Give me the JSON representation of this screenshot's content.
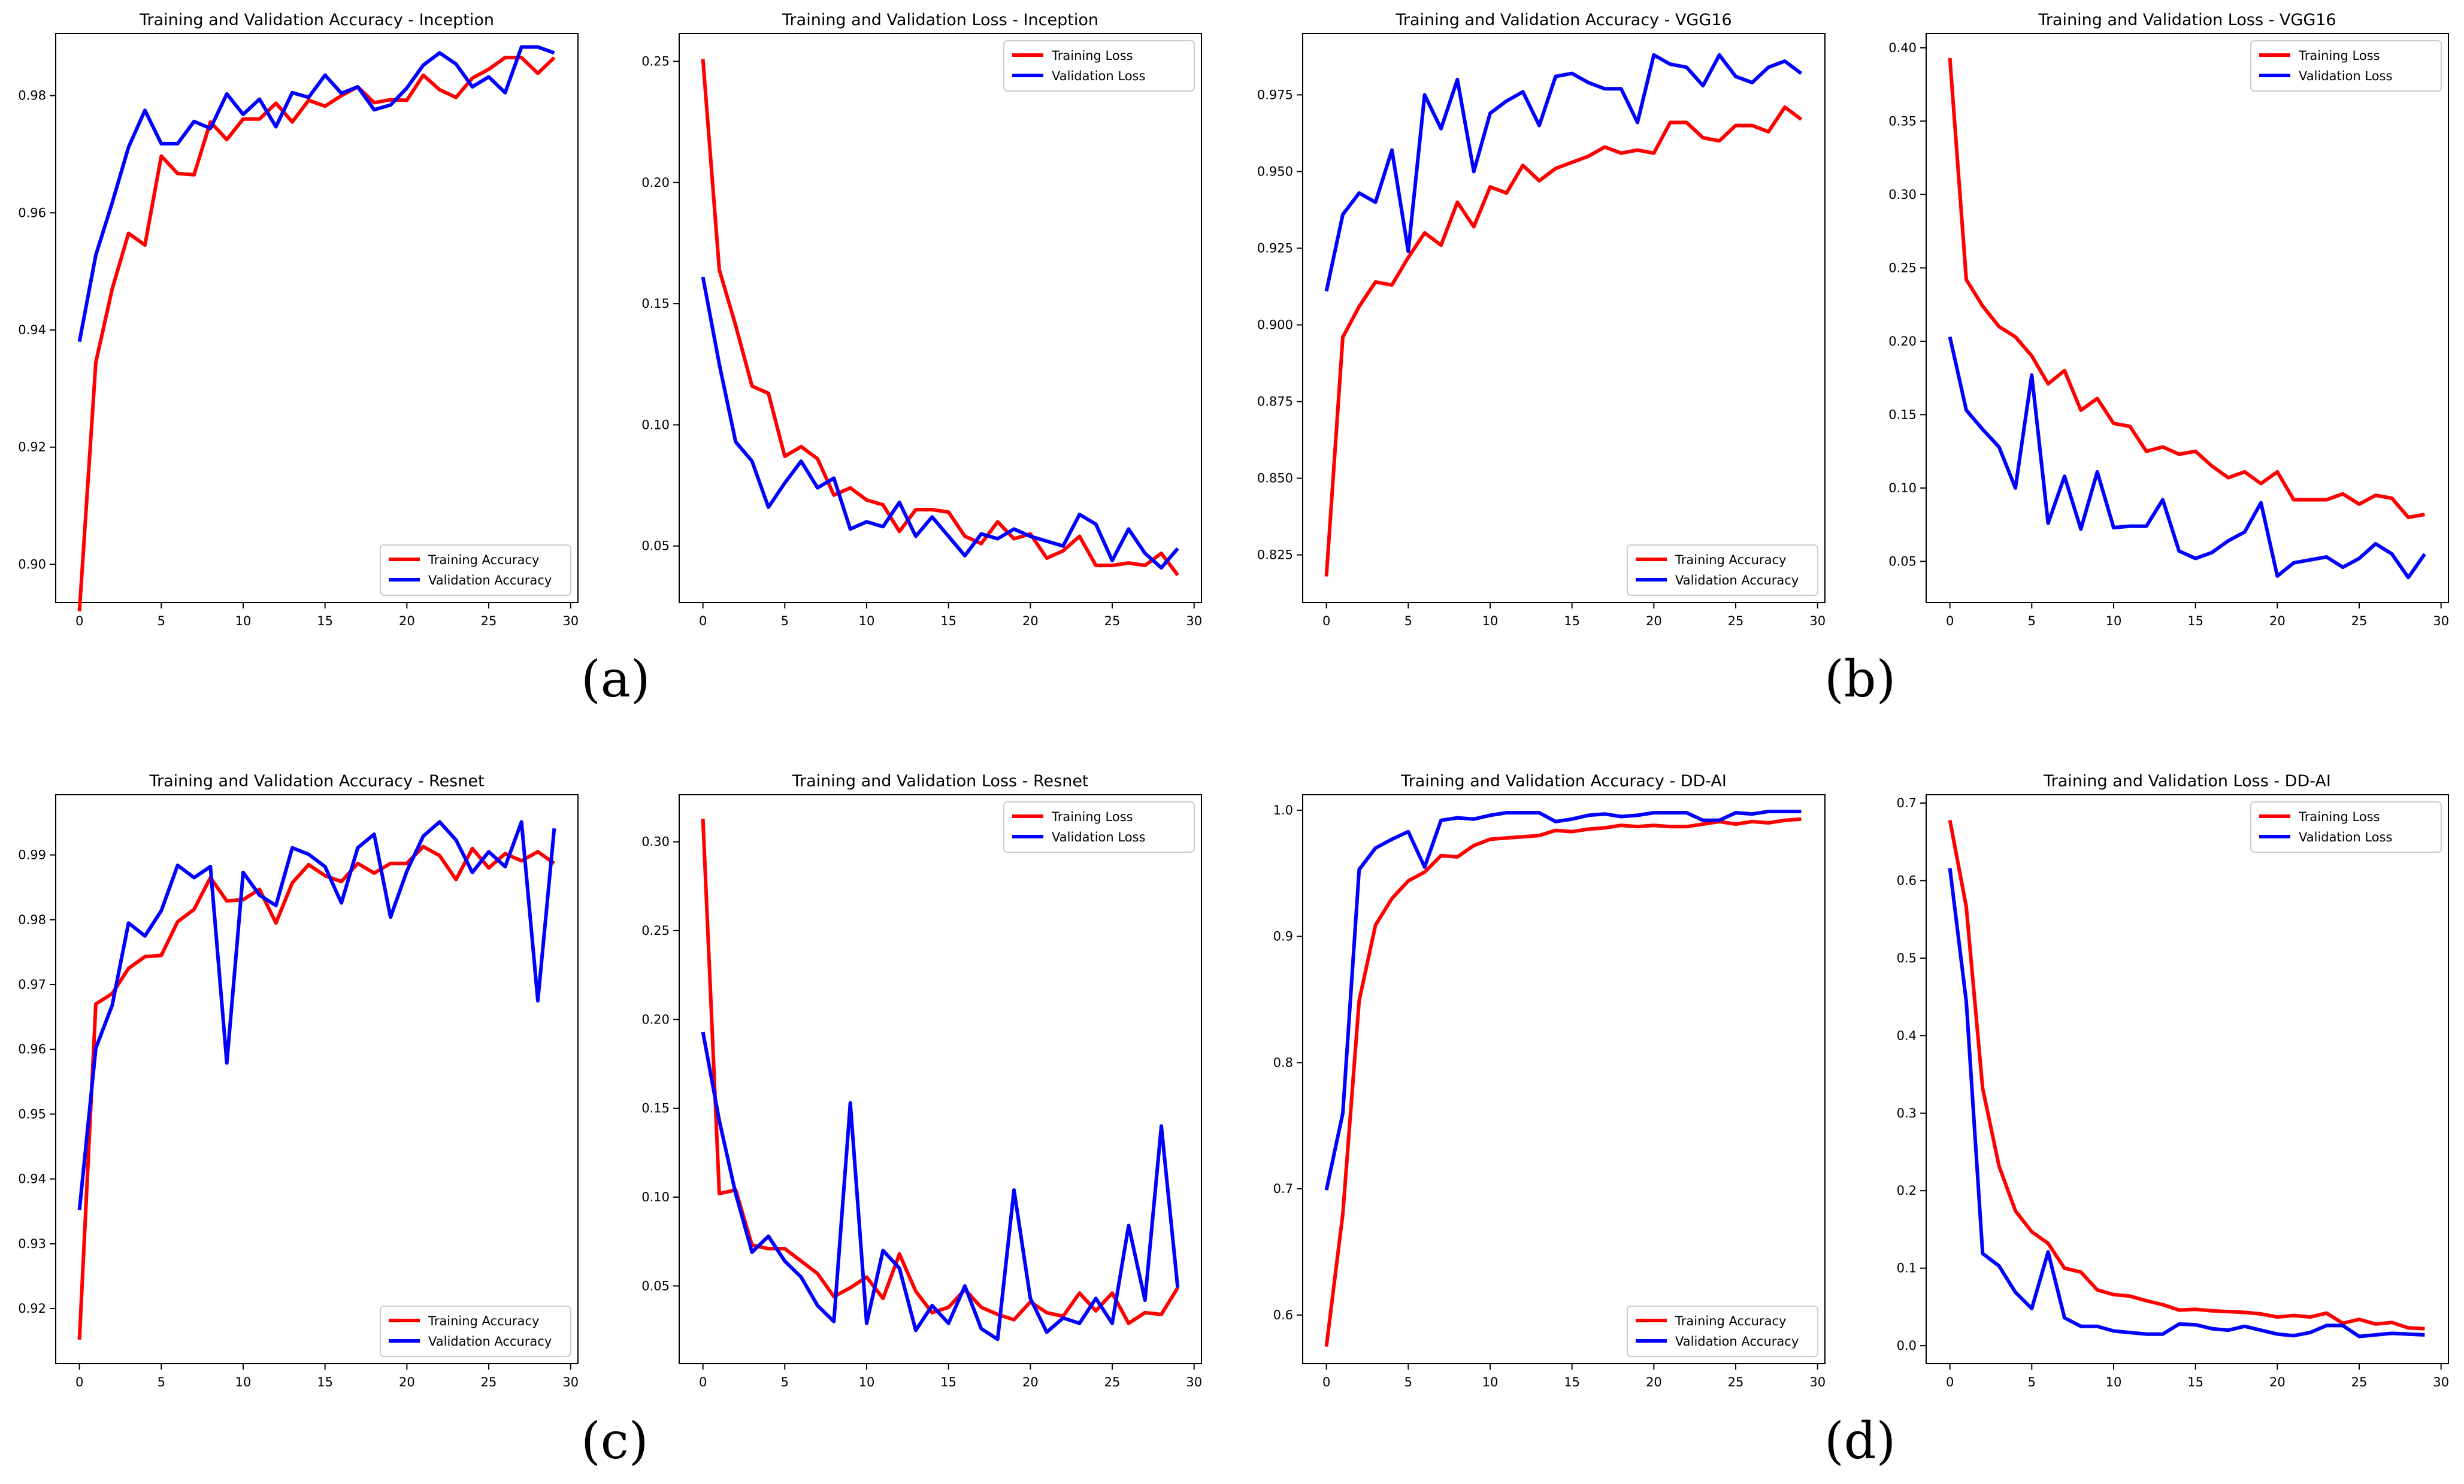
{
  "figure": {
    "panel_labels": [
      "(a)",
      "(b)",
      "(c)",
      "(d)"
    ]
  },
  "colors": {
    "training": "#ff0000",
    "validation": "#0000ff",
    "axes": "#000000",
    "legend_border": "#cccccc"
  },
  "chart_data": [
    {
      "id": "inception-acc",
      "type": "line",
      "title": "Training and Validation Accuracy - Inception",
      "xlabel": "",
      "ylabel": "",
      "xlim": [
        -1.45,
        30.45
      ],
      "ylim": [
        0.8935,
        0.9906
      ],
      "xticks": [
        0,
        5,
        10,
        15,
        20,
        25,
        30
      ],
      "yticks": [
        0.9,
        0.92,
        0.94,
        0.96,
        0.98
      ],
      "ytick_labels": [
        "0.90",
        "0.92",
        "0.94",
        "0.96",
        "0.98"
      ],
      "legend": "lower-right",
      "grid": false,
      "series": [
        {
          "name": "Training Accuracy",
          "color": "#ff0000",
          "values": [
            0.892,
            0.9345,
            0.947,
            0.9565,
            0.9545,
            0.9697,
            0.9667,
            0.9665,
            0.9755,
            0.9725,
            0.976,
            0.976,
            0.9787,
            0.9755,
            0.9792,
            0.9782,
            0.98,
            0.9815,
            0.9788,
            0.9793,
            0.9792,
            0.9835,
            0.981,
            0.9797,
            0.983,
            0.9845,
            0.9865,
            0.9865,
            0.9838,
            0.9865
          ]
        },
        {
          "name": "Validation Accuracy",
          "color": "#0000ff",
          "values": [
            0.938,
            0.9528,
            0.9617,
            0.9712,
            0.9775,
            0.9718,
            0.9718,
            0.9756,
            0.9744,
            0.9803,
            0.9768,
            0.9794,
            0.9747,
            0.9805,
            0.9797,
            0.9835,
            0.9804,
            0.9815,
            0.9776,
            0.9784,
            0.9813,
            0.9852,
            0.9873,
            0.9854,
            0.9815,
            0.9832,
            0.9805,
            0.9883,
            0.9883,
            0.9873
          ]
        }
      ]
    },
    {
      "id": "inception-loss",
      "type": "line",
      "title": "Training and Validation Loss - Inception",
      "xlabel": "",
      "ylabel": "",
      "xlim": [
        -1.45,
        30.45
      ],
      "ylim": [
        0.0267,
        0.2615
      ],
      "xticks": [
        0,
        5,
        10,
        15,
        20,
        25,
        30
      ],
      "yticks": [
        0.05,
        0.1,
        0.15,
        0.2,
        0.25
      ],
      "ytick_labels": [
        "0.05",
        "0.10",
        "0.15",
        "0.20",
        "0.25"
      ],
      "legend": "upper-right",
      "grid": false,
      "series": [
        {
          "name": "Training Loss",
          "color": "#ff0000",
          "values": [
            0.251,
            0.164,
            0.141,
            0.116,
            0.113,
            0.087,
            0.091,
            0.086,
            0.071,
            0.074,
            0.069,
            0.067,
            0.056,
            0.065,
            0.065,
            0.064,
            0.054,
            0.051,
            0.06,
            0.053,
            0.055,
            0.045,
            0.048,
            0.054,
            0.042,
            0.042,
            0.043,
            0.042,
            0.047,
            0.038
          ]
        },
        {
          "name": "Validation Loss",
          "color": "#0000ff",
          "values": [
            0.161,
            0.125,
            0.093,
            0.085,
            0.066,
            0.076,
            0.085,
            0.074,
            0.078,
            0.057,
            0.06,
            0.058,
            0.068,
            0.054,
            0.062,
            0.054,
            0.046,
            0.055,
            0.053,
            0.057,
            0.054,
            0.052,
            0.05,
            0.063,
            0.059,
            0.044,
            0.057,
            0.047,
            0.041,
            0.049
          ]
        }
      ]
    },
    {
      "id": "vgg16-acc",
      "type": "line",
      "title": "Training and Validation Accuracy - VGG16",
      "xlabel": "",
      "ylabel": "",
      "xlim": [
        -1.45,
        30.45
      ],
      "ylim": [
        0.8095,
        0.995
      ],
      "xticks": [
        0,
        5,
        10,
        15,
        20,
        25,
        30
      ],
      "yticks": [
        0.825,
        0.85,
        0.875,
        0.9,
        0.925,
        0.95,
        0.975
      ],
      "ytick_labels": [
        "0.825",
        "0.850",
        "0.875",
        "0.900",
        "0.925",
        "0.950",
        "0.975"
      ],
      "legend": "lower-right",
      "grid": false,
      "series": [
        {
          "name": "Training Accuracy",
          "color": "#ff0000",
          "values": [
            0.818,
            0.896,
            0.906,
            0.914,
            0.913,
            0.922,
            0.93,
            0.926,
            0.94,
            0.932,
            0.945,
            0.943,
            0.952,
            0.947,
            0.951,
            0.953,
            0.955,
            0.958,
            0.956,
            0.957,
            0.956,
            0.966,
            0.966,
            0.961,
            0.96,
            0.965,
            0.965,
            0.963,
            0.971,
            0.967
          ]
        },
        {
          "name": "Validation Accuracy",
          "color": "#0000ff",
          "values": [
            0.911,
            0.936,
            0.943,
            0.94,
            0.957,
            0.924,
            0.975,
            0.964,
            0.98,
            0.95,
            0.969,
            0.973,
            0.976,
            0.965,
            0.981,
            0.982,
            0.979,
            0.977,
            0.977,
            0.966,
            0.988,
            0.985,
            0.984,
            0.978,
            0.988,
            0.981,
            0.979,
            0.984,
            0.986,
            0.982
          ]
        }
      ]
    },
    {
      "id": "vgg16-loss",
      "type": "line",
      "title": "Training and Validation Loss - VGG16",
      "xlabel": "",
      "ylabel": "",
      "xlim": [
        -1.45,
        30.45
      ],
      "ylim": [
        0.022,
        0.4097
      ],
      "xticks": [
        0,
        5,
        10,
        15,
        20,
        25,
        30
      ],
      "yticks": [
        0.05,
        0.1,
        0.15,
        0.2,
        0.25,
        0.3,
        0.35,
        0.4
      ],
      "ytick_labels": [
        "0.05",
        "0.10",
        "0.15",
        "0.20",
        "0.25",
        "0.30",
        "0.35",
        "0.40"
      ],
      "legend": "upper-right",
      "grid": false,
      "series": [
        {
          "name": "Training Loss",
          "color": "#ff0000",
          "values": [
            0.393,
            0.242,
            0.224,
            0.21,
            0.203,
            0.19,
            0.171,
            0.18,
            0.153,
            0.161,
            0.144,
            0.142,
            0.125,
            0.128,
            0.123,
            0.125,
            0.115,
            0.107,
            0.111,
            0.103,
            0.111,
            0.092,
            0.092,
            0.092,
            0.096,
            0.089,
            0.095,
            0.093,
            0.08,
            0.082
          ]
        },
        {
          "name": "Validation Loss",
          "color": "#0000ff",
          "values": [
            0.203,
            0.153,
            0.14,
            0.128,
            0.1,
            0.177,
            0.076,
            0.108,
            0.072,
            0.111,
            0.073,
            0.074,
            0.074,
            0.092,
            0.057,
            0.052,
            0.056,
            0.064,
            0.07,
            0.09,
            0.04,
            0.049,
            0.051,
            0.053,
            0.046,
            0.052,
            0.062,
            0.055,
            0.039,
            0.055
          ]
        }
      ]
    },
    {
      "id": "resnet-acc",
      "type": "line",
      "title": "Training and Validation Accuracy - Resnet",
      "xlabel": "",
      "ylabel": "",
      "xlim": [
        -1.45,
        30.45
      ],
      "ylim": [
        0.9115,
        0.9993
      ],
      "xticks": [
        0,
        5,
        10,
        15,
        20,
        25,
        30
      ],
      "yticks": [
        0.92,
        0.93,
        0.94,
        0.95,
        0.96,
        0.97,
        0.98,
        0.99
      ],
      "ytick_labels": [
        "0.92",
        "0.93",
        "0.94",
        "0.95",
        "0.96",
        "0.97",
        "0.98",
        "0.99"
      ],
      "legend": "lower-right",
      "grid": false,
      "series": [
        {
          "name": "Training Accuracy",
          "color": "#ff0000",
          "values": [
            0.9152,
            0.967,
            0.9686,
            0.9725,
            0.9743,
            0.9745,
            0.9797,
            0.9816,
            0.9865,
            0.9829,
            0.9831,
            0.9847,
            0.9795,
            0.9857,
            0.9885,
            0.9868,
            0.9859,
            0.9887,
            0.9872,
            0.9887,
            0.9887,
            0.9913,
            0.9899,
            0.9862,
            0.991,
            0.988,
            0.9902,
            0.9891,
            0.9905,
            0.9887
          ]
        },
        {
          "name": "Validation Accuracy",
          "color": "#0000ff",
          "values": [
            0.9352,
            0.9602,
            0.9668,
            0.9795,
            0.9775,
            0.9814,
            0.9884,
            0.9865,
            0.9882,
            0.9579,
            0.9873,
            0.9838,
            0.9822,
            0.9911,
            0.9901,
            0.9882,
            0.9826,
            0.9911,
            0.9932,
            0.9804,
            0.9875,
            0.9929,
            0.9951,
            0.9923,
            0.9873,
            0.9905,
            0.9882,
            0.9951,
            0.9675,
            0.9941
          ]
        }
      ]
    },
    {
      "id": "resnet-loss",
      "type": "line",
      "title": "Training and Validation Loss - Resnet",
      "xlabel": "",
      "ylabel": "",
      "xlim": [
        -1.45,
        30.45
      ],
      "ylim": [
        0.0063,
        0.3265
      ],
      "xticks": [
        0,
        5,
        10,
        15,
        20,
        25,
        30
      ],
      "yticks": [
        0.05,
        0.1,
        0.15,
        0.2,
        0.25,
        0.3
      ],
      "ytick_labels": [
        "0.05",
        "0.10",
        "0.15",
        "0.20",
        "0.25",
        "0.30"
      ],
      "legend": "upper-right",
      "grid": false,
      "series": [
        {
          "name": "Training Loss",
          "color": "#ff0000",
          "values": [
            0.313,
            0.102,
            0.104,
            0.073,
            0.071,
            0.071,
            0.064,
            0.057,
            0.044,
            0.049,
            0.055,
            0.043,
            0.068,
            0.047,
            0.035,
            0.038,
            0.048,
            0.038,
            0.034,
            0.031,
            0.041,
            0.035,
            0.033,
            0.046,
            0.036,
            0.046,
            0.029,
            0.035,
            0.034,
            0.049
          ]
        },
        {
          "name": "Validation Loss",
          "color": "#0000ff",
          "values": [
            0.193,
            0.143,
            0.102,
            0.069,
            0.078,
            0.064,
            0.055,
            0.039,
            0.03,
            0.153,
            0.029,
            0.07,
            0.06,
            0.025,
            0.039,
            0.029,
            0.05,
            0.026,
            0.02,
            0.104,
            0.043,
            0.024,
            0.032,
            0.029,
            0.043,
            0.029,
            0.084,
            0.042,
            0.14,
            0.049
          ]
        }
      ]
    },
    {
      "id": "ddai-acc",
      "type": "line",
      "title": "Training and Validation Accuracy - DD-AI",
      "xlabel": "",
      "ylabel": "",
      "xlim": [
        -1.45,
        30.45
      ],
      "ylim": [
        0.5615,
        1.0123
      ],
      "xticks": [
        0,
        5,
        10,
        15,
        20,
        25,
        30
      ],
      "yticks": [
        0.6,
        0.7,
        0.8,
        0.9,
        1.0
      ],
      "ytick_labels": [
        "0.6",
        "0.7",
        "0.8",
        "0.9",
        "1.0"
      ],
      "legend": "lower-right",
      "grid": false,
      "series": [
        {
          "name": "Training Accuracy",
          "color": "#ff0000",
          "values": [
            0.575,
            0.68,
            0.849,
            0.909,
            0.93,
            0.944,
            0.951,
            0.964,
            0.963,
            0.972,
            0.977,
            0.978,
            0.979,
            0.98,
            0.984,
            0.983,
            0.985,
            0.986,
            0.988,
            0.987,
            0.988,
            0.987,
            0.987,
            0.989,
            0.991,
            0.989,
            0.991,
            0.99,
            0.992,
            0.993
          ]
        },
        {
          "name": "Validation Accuracy",
          "color": "#0000ff",
          "values": [
            0.699,
            0.76,
            0.953,
            0.97,
            0.977,
            0.983,
            0.955,
            0.992,
            0.994,
            0.993,
            0.996,
            0.998,
            0.998,
            0.998,
            0.991,
            0.993,
            0.996,
            0.997,
            0.995,
            0.996,
            0.998,
            0.998,
            0.998,
            0.992,
            0.992,
            0.998,
            0.997,
            0.999,
            0.999,
            0.999
          ]
        }
      ]
    },
    {
      "id": "ddai-loss",
      "type": "line",
      "title": "Training and Validation Loss - DD-AI",
      "xlabel": "",
      "ylabel": "",
      "xlim": [
        -1.45,
        30.45
      ],
      "ylim": [
        -0.0231,
        0.7108
      ],
      "xticks": [
        0,
        5,
        10,
        15,
        20,
        25,
        30
      ],
      "yticks": [
        0.0,
        0.1,
        0.2,
        0.3,
        0.4,
        0.5,
        0.6,
        0.7
      ],
      "ytick_labels": [
        "0.0",
        "0.1",
        "0.2",
        "0.3",
        "0.4",
        "0.5",
        "0.6",
        "0.7"
      ],
      "legend": "upper-right",
      "grid": false,
      "series": [
        {
          "name": "Training Loss",
          "color": "#ff0000",
          "values": [
            0.678,
            0.566,
            0.332,
            0.232,
            0.174,
            0.147,
            0.132,
            0.1,
            0.095,
            0.072,
            0.066,
            0.064,
            0.058,
            0.053,
            0.046,
            0.047,
            0.045,
            0.044,
            0.043,
            0.041,
            0.037,
            0.039,
            0.037,
            0.042,
            0.029,
            0.034,
            0.028,
            0.03,
            0.023,
            0.022
          ]
        },
        {
          "name": "Validation Loss",
          "color": "#0000ff",
          "values": [
            0.616,
            0.444,
            0.119,
            0.103,
            0.069,
            0.048,
            0.121,
            0.036,
            0.025,
            0.025,
            0.019,
            0.017,
            0.015,
            0.015,
            0.028,
            0.027,
            0.022,
            0.02,
            0.025,
            0.02,
            0.015,
            0.013,
            0.017,
            0.026,
            0.026,
            0.012,
            0.014,
            0.016,
            0.015,
            0.014
          ]
        }
      ]
    }
  ]
}
